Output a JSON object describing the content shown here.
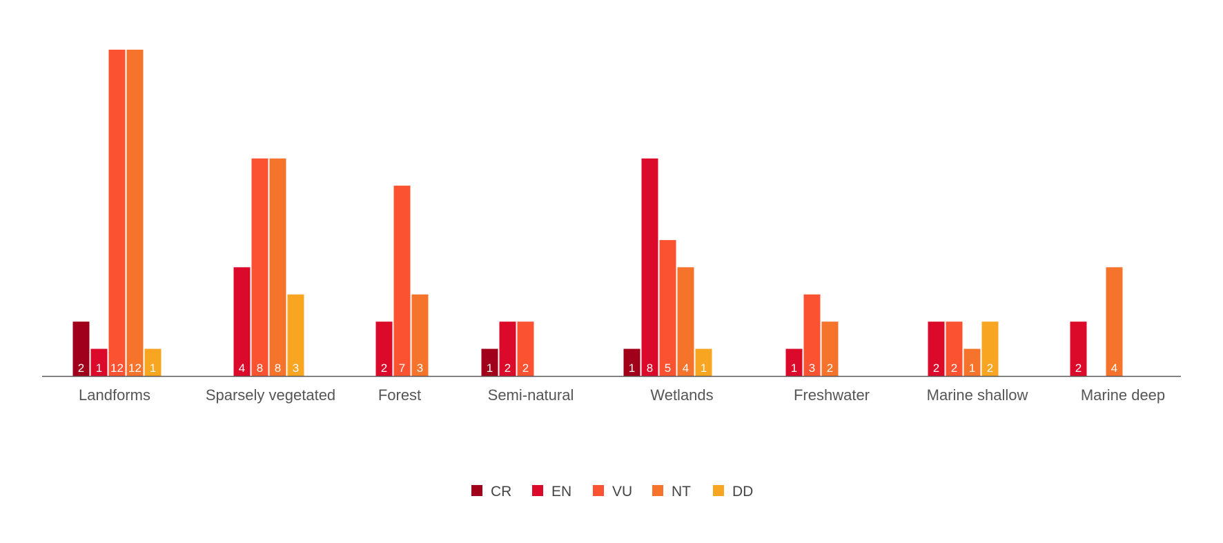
{
  "chart_data": {
    "type": "bar",
    "title": "",
    "xlabel": "",
    "ylabel": "",
    "ylim": [
      0,
      12
    ],
    "grid": false,
    "legend_position": "bottom-center",
    "categories": [
      "Landforms",
      "Sparsely vegetated",
      "Forest",
      "Semi-natural",
      "Wetlands",
      "Freshwater",
      "Marine shallow",
      "Marine deep"
    ],
    "series": [
      {
        "name": "CR",
        "color": "#a0001a",
        "values": [
          2,
          null,
          null,
          1,
          1,
          null,
          null,
          null
        ]
      },
      {
        "name": "EN",
        "color": "#dc0a2a",
        "values": [
          1,
          4,
          2,
          2,
          8,
          1,
          2,
          2
        ]
      },
      {
        "name": "VU",
        "color": "#fb5331",
        "values": [
          12,
          8,
          7,
          2,
          5,
          3,
          2,
          null
        ]
      },
      {
        "name": "NT",
        "color": "#f5732b",
        "values": [
          12,
          8,
          3,
          null,
          4,
          2,
          1,
          4
        ]
      },
      {
        "name": "DD",
        "color": "#f8a521",
        "values": [
          1,
          3,
          null,
          null,
          1,
          null,
          2,
          null
        ]
      }
    ]
  },
  "colors": {
    "axis": "#555555",
    "label_text": "#555555"
  }
}
